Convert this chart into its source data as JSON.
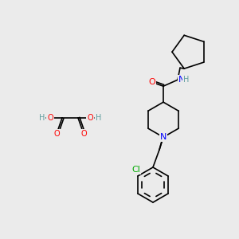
{
  "bg_color": "#ebebeb",
  "bond_color": "#000000",
  "bond_width": 1.2,
  "atom_colors": {
    "O": "#ff0000",
    "N": "#0000ff",
    "Cl": "#00aa00",
    "H": "#5f9ea0",
    "C": "#000000"
  },
  "font_size_atom": 7,
  "font_size_label": 7
}
